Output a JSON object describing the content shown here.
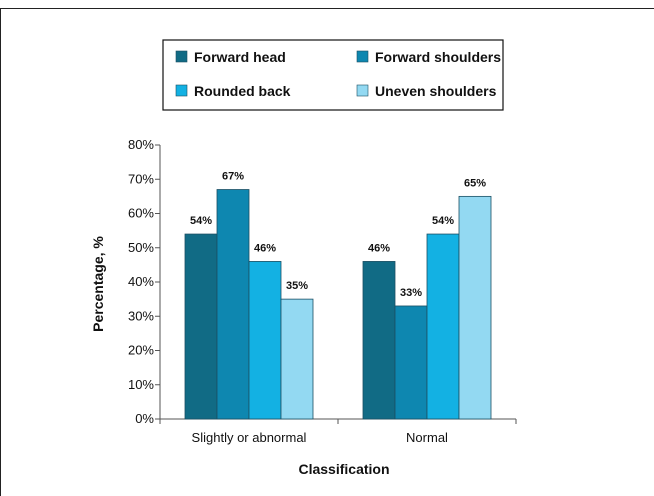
{
  "chart_data": {
    "type": "bar",
    "categories": [
      "Slightly or abnormal",
      "Normal"
    ],
    "series": [
      {
        "name": "Forward head",
        "values": [
          54,
          46
        ],
        "color": "#116b85"
      },
      {
        "name": "Forward shoulders",
        "values": [
          67,
          33
        ],
        "color": "#0e87b0"
      },
      {
        "name": "Rounded back",
        "values": [
          46,
          54
        ],
        "color": "#13b1e3"
      },
      {
        "name": "Uneven shoulders",
        "values": [
          35,
          65
        ],
        "color": "#93d9f2"
      }
    ],
    "value_suffix": "%",
    "xlabel": "Classification",
    "ylabel": "Percentage, %",
    "ylim": [
      0,
      80
    ],
    "yticks": [
      0,
      10,
      20,
      30,
      40,
      50,
      60,
      70,
      80
    ],
    "ytick_labels": [
      "0%",
      "10%",
      "20%",
      "30%",
      "40%",
      "50%",
      "60%",
      "70%",
      "80%"
    ],
    "grid": false,
    "legend_position": "top"
  }
}
